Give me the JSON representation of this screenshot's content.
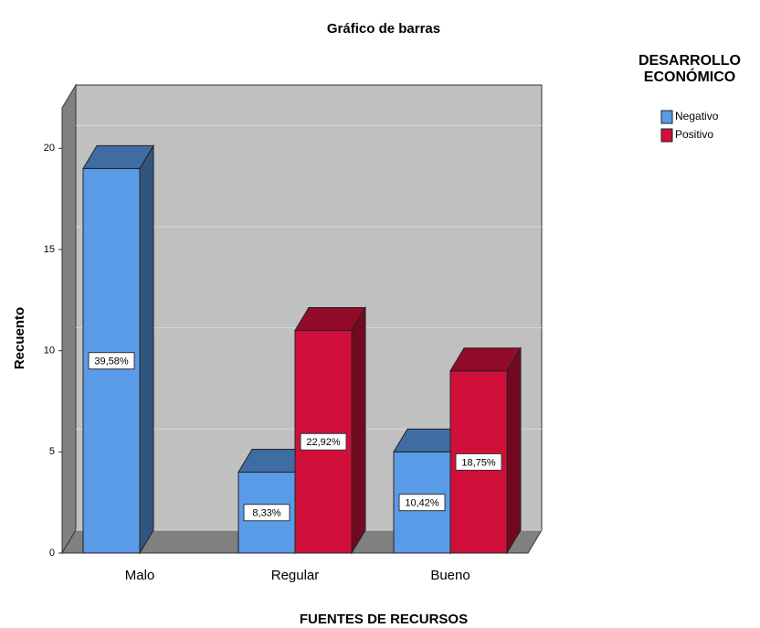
{
  "chart_data": {
    "type": "bar3d",
    "title": "Gráfico de barras",
    "x_label": "FUENTES DE RECURSOS",
    "y_label": "Recuento",
    "legend_title": "DESARROLLO ECONÓMICO",
    "categories": [
      "Malo",
      "Regular",
      "Bueno"
    ],
    "series": [
      {
        "name": "Negativo",
        "color": "#5a9be8",
        "values": [
          19,
          4,
          5
        ],
        "percent_labels": [
          "39,58%",
          "8,33%",
          "10,42%"
        ]
      },
      {
        "name": "Positivo",
        "color": "#d0103a",
        "values": [
          null,
          11,
          9
        ],
        "percent_labels": [
          null,
          "22,92%",
          "18,75%"
        ]
      }
    ],
    "ylim": [
      0,
      22
    ],
    "yticks": [
      0,
      5,
      10,
      15,
      20
    ],
    "grid": true,
    "legend": "right"
  }
}
